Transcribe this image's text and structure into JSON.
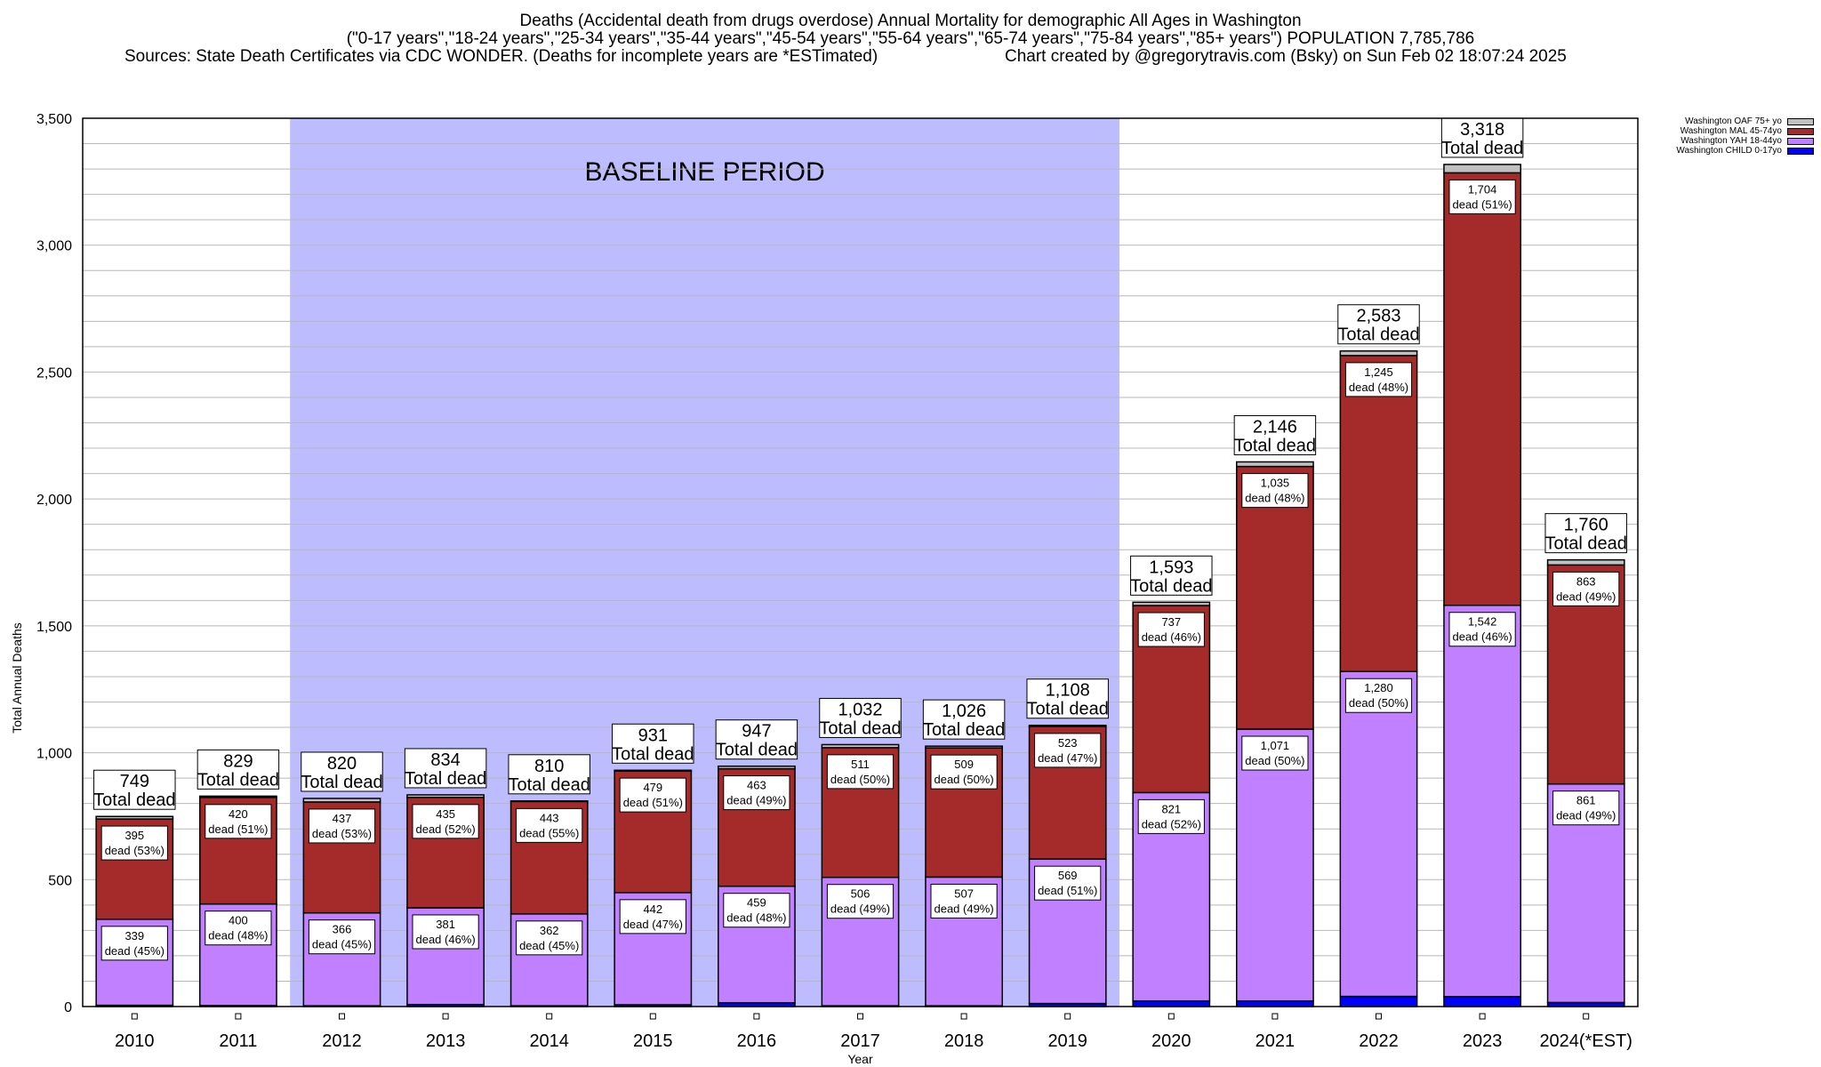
{
  "header": {
    "title_line1": "Deaths (Accidental death from drugs overdose) Annual Mortality for demographic All Ages in Washington",
    "title_line2": "(\"0-17 years\",\"18-24 years\",\"25-34 years\",\"35-44 years\",\"45-54 years\",\"55-64 years\",\"65-74 years\",\"75-84 years\",\"85+ years\") POPULATION 7,785,786",
    "sources": "Sources: State Death Certificates via CDC WONDER. (Deaths for incomplete years are *ESTimated)",
    "credit": "Chart created by @gregorytravis.com (Bsky) on Sun Feb 02 18:07:24 2025"
  },
  "chart_data": {
    "type": "bar",
    "stacked": true,
    "title": "Deaths (Accidental death from drugs overdose) Annual Mortality for demographic All Ages in Washington",
    "xlabel": "Year",
    "ylabel": "Total Annual Deaths",
    "ylim": [
      0,
      3500
    ],
    "yticks": [
      "0",
      "500",
      "1,000",
      "1,500",
      "2,000",
      "2,500",
      "3,000",
      "3,500"
    ],
    "ytick_values": [
      0,
      500,
      1000,
      1500,
      2000,
      2500,
      3000,
      3500
    ],
    "grid": true,
    "grid_step": 100,
    "legend_position": "top-right",
    "annotation": {
      "text": "BASELINE PERIOD",
      "from_category": "2012",
      "to_category": "2019",
      "color": "#bcbcff"
    },
    "categories": [
      "2010",
      "2011",
      "2012",
      "2013",
      "2014",
      "2015",
      "2016",
      "2017",
      "2018",
      "2019",
      "2020",
      "2021",
      "2022",
      "2023",
      "2024(*EST)"
    ],
    "series": [
      {
        "name": "Washington CHILD 0-17yo",
        "color": "#0000ff",
        "values": [
          5,
          4,
          3,
          8,
          3,
          7,
          15,
          3,
          3,
          12,
          22,
          22,
          40,
          39,
          16
        ]
      },
      {
        "name": "Washington YAH 18-44yo",
        "color": "#c080ff",
        "values": [
          339,
          400,
          366,
          381,
          362,
          442,
          459,
          506,
          507,
          569,
          821,
          1071,
          1280,
          1542,
          861
        ],
        "labels": [
          "339\ndead (45%)",
          "400\ndead (48%)",
          "366\ndead (45%)",
          "381\ndead (46%)",
          "362\ndead (45%)",
          "442\ndead (47%)",
          "459\ndead (48%)",
          "506\ndead (49%)",
          "507\ndead (49%)",
          "569\ndead (51%)",
          "821\ndead (52%)",
          "1,071\ndead (50%)",
          "1,280\ndead (50%)",
          "1,542\ndead (46%)",
          "861\ndead (49%)"
        ]
      },
      {
        "name": "Washington MAL 45-74yo",
        "color": "#a52a2a",
        "values": [
          395,
          420,
          437,
          435,
          443,
          479,
          463,
          511,
          509,
          523,
          737,
          1035,
          1245,
          1704,
          863
        ],
        "labels": [
          "395\ndead (53%)",
          "420\ndead (51%)",
          "437\ndead (53%)",
          "435\ndead (52%)",
          "443\ndead (55%)",
          "479\ndead (51%)",
          "463\ndead (49%)",
          "511\ndead (50%)",
          "509\ndead (50%)",
          "523\ndead (47%)",
          "737\ndead (46%)",
          "1,035\ndead (48%)",
          "1,245\ndead (48%)",
          "1,704\ndead (51%)",
          "863\ndead (49%)"
        ]
      },
      {
        "name": "Washington OAF 75+ yo",
        "color": "#c0c0c0",
        "values": [
          10,
          5,
          14,
          10,
          2,
          3,
          10,
          12,
          7,
          4,
          13,
          18,
          18,
          33,
          20
        ]
      }
    ],
    "totals": [
      749,
      829,
      820,
      834,
      810,
      931,
      947,
      1032,
      1026,
      1108,
      1593,
      2146,
      2583,
      3318,
      1760
    ],
    "total_labels": [
      "749",
      "829",
      "820",
      "834",
      "810",
      "931",
      "947",
      "1,032",
      "1,026",
      "1,108",
      "1,593",
      "2,146",
      "2,583",
      "3,318",
      "1,760"
    ],
    "total_suffix": "Total dead",
    "legend_order": [
      "Washington OAF 75+ yo",
      "Washington MAL 45-74yo",
      "Washington YAH 18-44yo",
      "Washington CHILD 0-17yo"
    ]
  }
}
